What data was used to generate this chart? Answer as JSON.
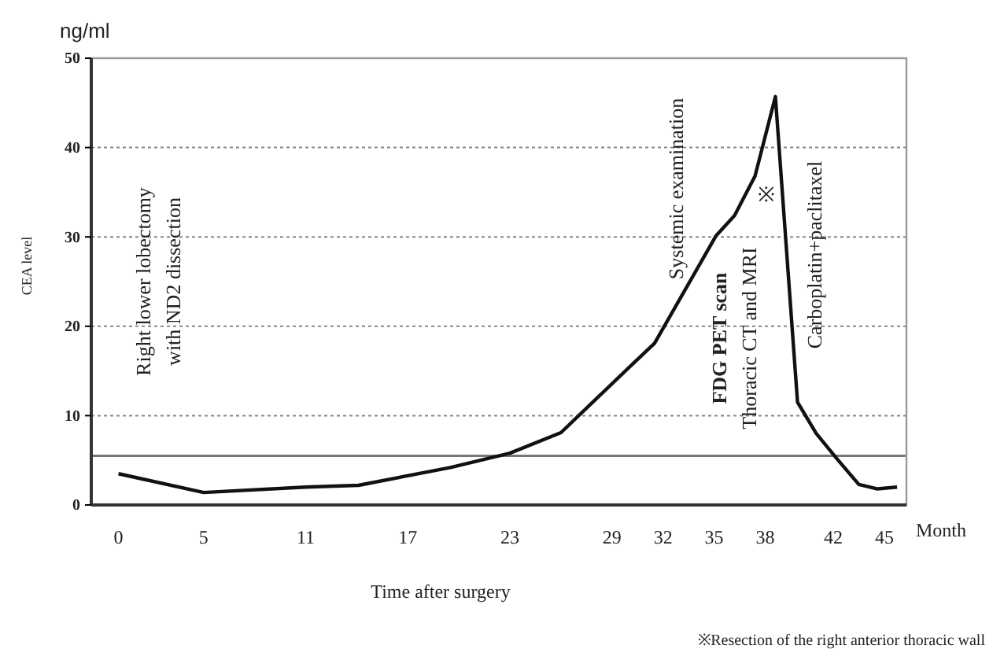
{
  "chart_data": {
    "type": "line",
    "xlabel": "Time after surgery",
    "ylabel": "CEA level",
    "x": [
      0,
      5,
      11,
      14.1,
      19.5,
      23,
      26,
      30,
      31.5,
      35.1,
      36.2,
      37.4,
      38.6,
      39.9,
      41,
      42.2,
      43.5,
      44.6,
      45.75
    ],
    "series": [
      {
        "color": "#111111",
        "values": [
          3.5,
          1.4,
          2.0,
          2.2,
          4.2,
          5.8,
          8.1,
          15.4,
          18.1,
          30.1,
          32.4,
          36.8,
          45.7,
          11.5,
          8.0,
          5.2,
          2.3,
          1.8,
          2.0
        ]
      }
    ],
    "xlim": [
      -1.6,
      46.3
    ],
    "xticks": [
      0,
      5,
      11,
      17,
      23,
      29,
      32,
      35,
      38,
      42,
      45
    ],
    "ylim": [
      0,
      50
    ],
    "yticks": [
      0,
      10,
      20,
      30,
      40,
      50
    ],
    "grid": "y",
    "line_style": "solid",
    "marker": "none",
    "ref_lines": [
      {
        "axis": "y",
        "value": 5.5,
        "color": "#777777"
      }
    ],
    "annotations": [
      "ng/ml",
      "Month",
      "※Resection of the right anterior thoracic wall",
      "Right lower lobectomy\nwith ND2 dissection",
      "Systemic examination",
      "FDG PET scan\nThoracic CT and MRI",
      "※",
      "Carboplatin+paclitaxel"
    ]
  }
}
